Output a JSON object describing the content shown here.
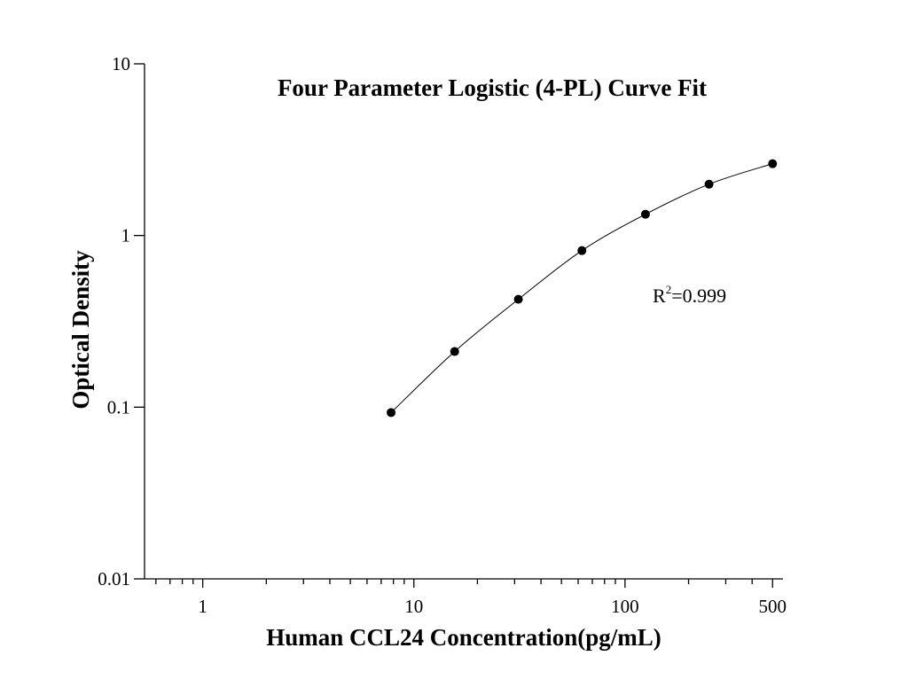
{
  "chart_data": {
    "type": "scatter",
    "title": "Four Parameter Logistic (4-PL) Curve Fit",
    "xlabel": "Human CCL24 Concentration(pg/mL)",
    "ylabel": "Optical Density",
    "annotation": {
      "base": "R",
      "superscript": "2",
      "text": "=0.999"
    },
    "series": [
      {
        "x": [
          7.8,
          15.6,
          31.25,
          62.5,
          125,
          250,
          500
        ],
        "values": [
          0.093,
          0.211,
          0.425,
          0.817,
          1.33,
          1.99,
          2.62
        ],
        "color": "#000000"
      }
    ],
    "curve": true,
    "xscale": "log",
    "yscale": "log",
    "xlim": [
      0.53,
      560
    ],
    "ylim": [
      0.01,
      10
    ],
    "xticks": [
      1,
      10,
      100,
      500
    ],
    "xminor_ticks": [
      0.6,
      0.7,
      0.8,
      0.9,
      2,
      3,
      4,
      5,
      6,
      7,
      8,
      9,
      20,
      30,
      40,
      50,
      60,
      70,
      80,
      90,
      200,
      300,
      400
    ],
    "yticks": [
      0.01,
      0.1,
      1,
      10
    ]
  }
}
